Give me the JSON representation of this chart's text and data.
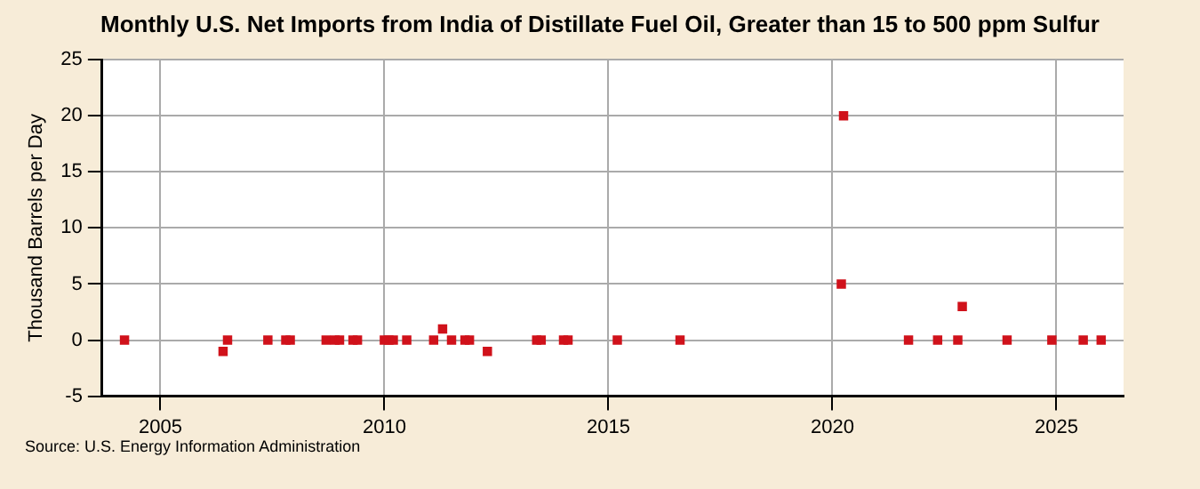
{
  "chart_data": {
    "type": "scatter",
    "title": "Monthly U.S. Net Imports from India of Distillate Fuel Oil, Greater than 15 to 500 ppm Sulfur",
    "ylabel": "Thousand Barrels per Day",
    "annotations": [
      "Source: U.S. Energy Information Administration"
    ],
    "x": [
      2004.2,
      2006.4,
      2006.5,
      2007.4,
      2007.8,
      2007.9,
      2008.7,
      2008.9,
      2009.0,
      2009.3,
      2009.4,
      2010.0,
      2010.1,
      2010.2,
      2010.5,
      2011.1,
      2011.3,
      2011.5,
      2011.8,
      2011.9,
      2012.3,
      2013.4,
      2013.5,
      2014.0,
      2014.1,
      2015.2,
      2016.6,
      2020.2,
      2020.25,
      2021.7,
      2022.35,
      2022.8,
      2022.9,
      2023.9,
      2024.9,
      2025.6,
      2026.0
    ],
    "series": [
      {
        "color": "#d0121b",
        "values": [
          0,
          -1,
          0,
          0,
          0,
          0,
          0,
          0,
          0,
          0,
          0,
          0,
          0,
          0,
          0,
          0,
          1,
          0,
          0,
          0,
          -1,
          0,
          0,
          0,
          0,
          0,
          0,
          5,
          20,
          0,
          0,
          0,
          3,
          0,
          0,
          0,
          0
        ]
      }
    ],
    "xlim": [
      2003.7,
      2026.5
    ],
    "xticks": [
      2005,
      2010,
      2015,
      2020,
      2025
    ],
    "ylim": [
      -5,
      25
    ],
    "yticks": [
      -5,
      0,
      5,
      10,
      15,
      20,
      25
    ],
    "grid": true,
    "legend": false,
    "marker": "square"
  }
}
